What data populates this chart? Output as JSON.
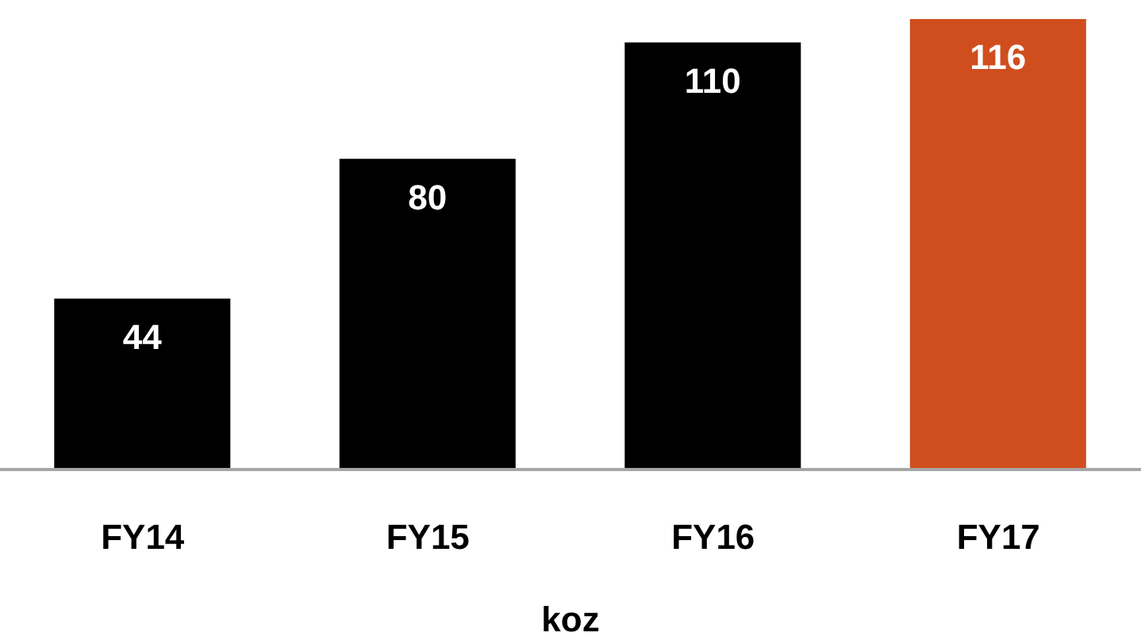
{
  "chart_data": {
    "type": "bar",
    "xlabel": "koz",
    "categories": [
      "FY14",
      "FY15",
      "FY16",
      "FY17"
    ],
    "values": [
      44,
      80,
      110,
      116
    ],
    "colors": [
      "#000000",
      "#000000",
      "#000000",
      "#d04e1e"
    ],
    "data_labels": true,
    "relative": false
  }
}
